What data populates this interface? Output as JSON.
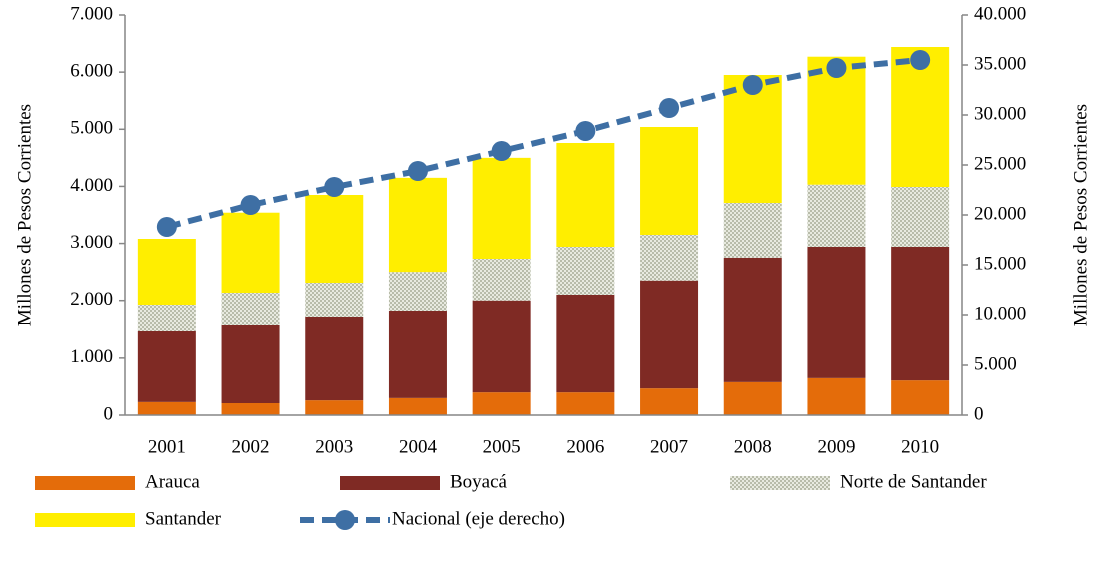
{
  "chart_data": {
    "type": "bar",
    "stacked": true,
    "categories": [
      "2001",
      "2002",
      "2003",
      "2004",
      "2005",
      "2006",
      "2007",
      "2008",
      "2009",
      "2010"
    ],
    "ylabel": "Millones de Pesos Corrientes",
    "y2label": "Millones de Pesos Corrientes",
    "ylim": [
      0,
      7000
    ],
    "yticks": [
      0,
      {
        "value": 1000,
        "label": "1.000"
      },
      {
        "value": 2000,
        "label": "2.000"
      },
      {
        "value": 3000,
        "label": "3.000"
      },
      {
        "value": 4000,
        "label": "4.000"
      },
      {
        "value": 5000,
        "label": "5.000"
      },
      {
        "value": 6000,
        "label": "6.000"
      },
      {
        "value": 7000,
        "label": "7.000"
      }
    ],
    "y2lim": [
      0,
      40000
    ],
    "y2ticks": [
      0,
      {
        "value": 5000,
        "label": "5.000"
      },
      {
        "value": 10000,
        "label": "10.000"
      },
      {
        "value": 15000,
        "label": "15.000"
      },
      {
        "value": 20000,
        "label": "20.000"
      },
      {
        "value": 25000,
        "label": "25.000"
      },
      {
        "value": 30000,
        "label": "30.000"
      },
      {
        "value": 35000,
        "label": "35.000"
      },
      {
        "value": 40000,
        "label": "40.000"
      }
    ],
    "series": [
      {
        "name": "Arauca",
        "color": "#e46c0a",
        "values": [
          230,
          210,
          260,
          300,
          400,
          400,
          470,
          580,
          650,
          610
        ]
      },
      {
        "name": "Boyacá",
        "color": "#7f2a24",
        "values": [
          1240,
          1365,
          1455,
          1520,
          1600,
          1700,
          1880,
          2170,
          2290,
          2330
        ]
      },
      {
        "name": "Norte de Santander",
        "color": "#b8bcaa",
        "values": [
          455,
          560,
          595,
          680,
          730,
          840,
          800,
          960,
          1090,
          1050
        ]
      },
      {
        "name": "Santander",
        "color": "#ffee00",
        "values": [
          1155,
          1405,
          1540,
          1650,
          1770,
          1820,
          1890,
          2240,
          2240,
          2450
        ]
      },
      {
        "name": "Nacional (eje derecho)",
        "color": "#3e6fa4",
        "axis": "y2",
        "values": [
          18800,
          21000,
          22800,
          24400,
          26400,
          28400,
          30700,
          33000,
          34700,
          35500
        ]
      }
    ]
  }
}
